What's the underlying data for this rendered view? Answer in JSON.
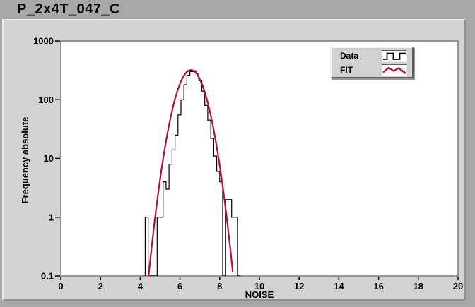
{
  "header": {
    "title": "P_2x4T_047_C"
  },
  "chart_data": {
    "type": "bar",
    "subtype": "histogram-with-fit",
    "title": "P_2x4T_047_C",
    "xlabel": "NOISE",
    "ylabel": "Frequency absolute",
    "grid": false,
    "legend_position": "top-right",
    "x_axis": {
      "min": 0,
      "max": 20,
      "tick_step": 2,
      "tick_labels": [
        "0",
        "2",
        "4",
        "6",
        "8",
        "10",
        "12",
        "14",
        "16",
        "18",
        "20"
      ]
    },
    "y_axis": {
      "scale": "log",
      "min": 0.1,
      "max": 1000,
      "tick_values": [
        1000,
        100,
        10,
        1,
        0.1
      ],
      "tick_labels": [
        "1000",
        "100",
        "10",
        "1",
        "0.1"
      ]
    },
    "series": [
      {
        "name": "Data",
        "type": "histogram-steps",
        "color": "#000000",
        "bin_width": 0.15,
        "bins": [
          [
            4.25,
            1
          ],
          [
            4.4,
            0
          ],
          [
            4.55,
            0
          ],
          [
            4.7,
            0
          ],
          [
            4.85,
            1
          ],
          [
            5.0,
            1
          ],
          [
            5.15,
            4
          ],
          [
            5.3,
            3
          ],
          [
            5.45,
            8
          ],
          [
            5.6,
            14
          ],
          [
            5.75,
            25
          ],
          [
            5.9,
            55
          ],
          [
            6.05,
            100
          ],
          [
            6.2,
            180
          ],
          [
            6.35,
            260
          ],
          [
            6.5,
            300
          ],
          [
            6.65,
            310
          ],
          [
            6.8,
            280
          ],
          [
            6.95,
            210
          ],
          [
            7.1,
            140
          ],
          [
            7.25,
            80
          ],
          [
            7.4,
            45
          ],
          [
            7.55,
            22
          ],
          [
            7.7,
            11
          ],
          [
            7.85,
            6
          ],
          [
            8.0,
            4
          ],
          [
            8.15,
            0
          ],
          [
            8.3,
            2
          ],
          [
            8.45,
            2
          ],
          [
            8.6,
            1
          ],
          [
            8.75,
            1
          ],
          [
            8.9,
            0
          ]
        ]
      },
      {
        "name": "FIT",
        "type": "gaussian-fit",
        "color": "#b3123f",
        "amplitude": 320,
        "mean": 6.55,
        "sigma": 0.53
      }
    ]
  },
  "legend": {
    "items": [
      {
        "label": "Data",
        "glyph": "square-wave"
      },
      {
        "label": "FIT",
        "glyph": "zigzag"
      }
    ]
  },
  "colors": {
    "window_bg": "#a8a8a8",
    "panel_bg": "#d2d2d2",
    "plot_bg": "#ffffff",
    "data_series": "#000000",
    "fit_series": "#b3123f"
  }
}
